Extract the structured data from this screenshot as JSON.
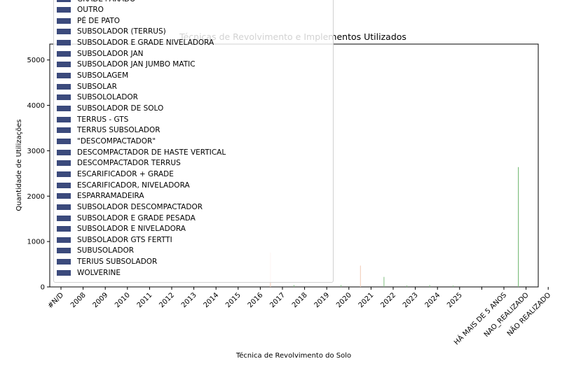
{
  "chart_data": {
    "type": "bar",
    "title": "Técnicas de Revolvimento e Implementos Utilizados",
    "xlabel": "Técnica de Revolvimento do Solo",
    "ylabel": "Quantidade de Utilizações",
    "ylim": [
      0,
      5350
    ],
    "yticks": [
      0,
      1000,
      2000,
      3000,
      4000,
      5000
    ],
    "categories": [
      "#N/D",
      "2008",
      "2009",
      "2010",
      "2011",
      "2012",
      "2013",
      "2014",
      "2015",
      "2016",
      "2017",
      "2018",
      "2019",
      "2020",
      "2021",
      "2022",
      "2023",
      "2024",
      "2025",
      "",
      "HÁ MAIS DE 5 ANOS",
      "NAO_REALIZADO",
      "NÃO REALIZADO"
    ],
    "grid": false,
    "legend_placement": "upper-left",
    "legend_entries": [
      "GRADE+ARADO",
      "OUTRO",
      "PÉ DE PATO",
      "SUBSOLADOR (TERRUS)",
      "SUBSOLADOR E GRADE NIVELADORA",
      "SUBSOLADOR JAN",
      "SUBSOLADOR JAN JUMBO MATIC",
      "SUBSOLAGEM",
      "SUBSOLAR",
      "SUBSOLOLADOR",
      "SUBSOLADOR DE SOLO",
      "TERRUS - GTS",
      "TERRUS SUBSOLADOR",
      "\"DESCOMPACTADOR\"",
      "DESCOMPACTADOR DE HASTE VERTICAL",
      "DESCOMPACTADOR TERRUS",
      "ESCARIFICADOR + GRADE",
      "ESCARIFICADOR, NIVELADORA",
      "ESPARRAMADEIRA",
      "SUBSOLADOR DESCOMPACTADOR",
      "SUBSOLADOR E GRADE PESADA",
      "SUBSOLADOR E NIVELADORA",
      "SUBSOLADOR GTS FERTTI",
      "SUBUSOLADOR",
      "TERIUS SUBSOLADOR",
      "WOLVERINE"
    ],
    "bars": [
      {
        "category": "2016",
        "value": 760
      },
      {
        "category": "2017",
        "value": 40
      },
      {
        "category": "2019",
        "value": 40
      },
      {
        "category": "2020",
        "value": 470
      },
      {
        "category": "2021",
        "value": 220
      },
      {
        "category": "2022",
        "value": 30
      },
      {
        "category": "2023",
        "value": 40
      },
      {
        "category": "2024",
        "value": 30
      },
      {
        "category": "HÁ MAIS DE 5 ANOS",
        "value": 2640
      }
    ],
    "colors": {
      "axis": "#000000",
      "legend_swatch": "#3b4a7c",
      "bar": "#7fbf7f",
      "bar_faint": "#f2c9b3"
    }
  }
}
